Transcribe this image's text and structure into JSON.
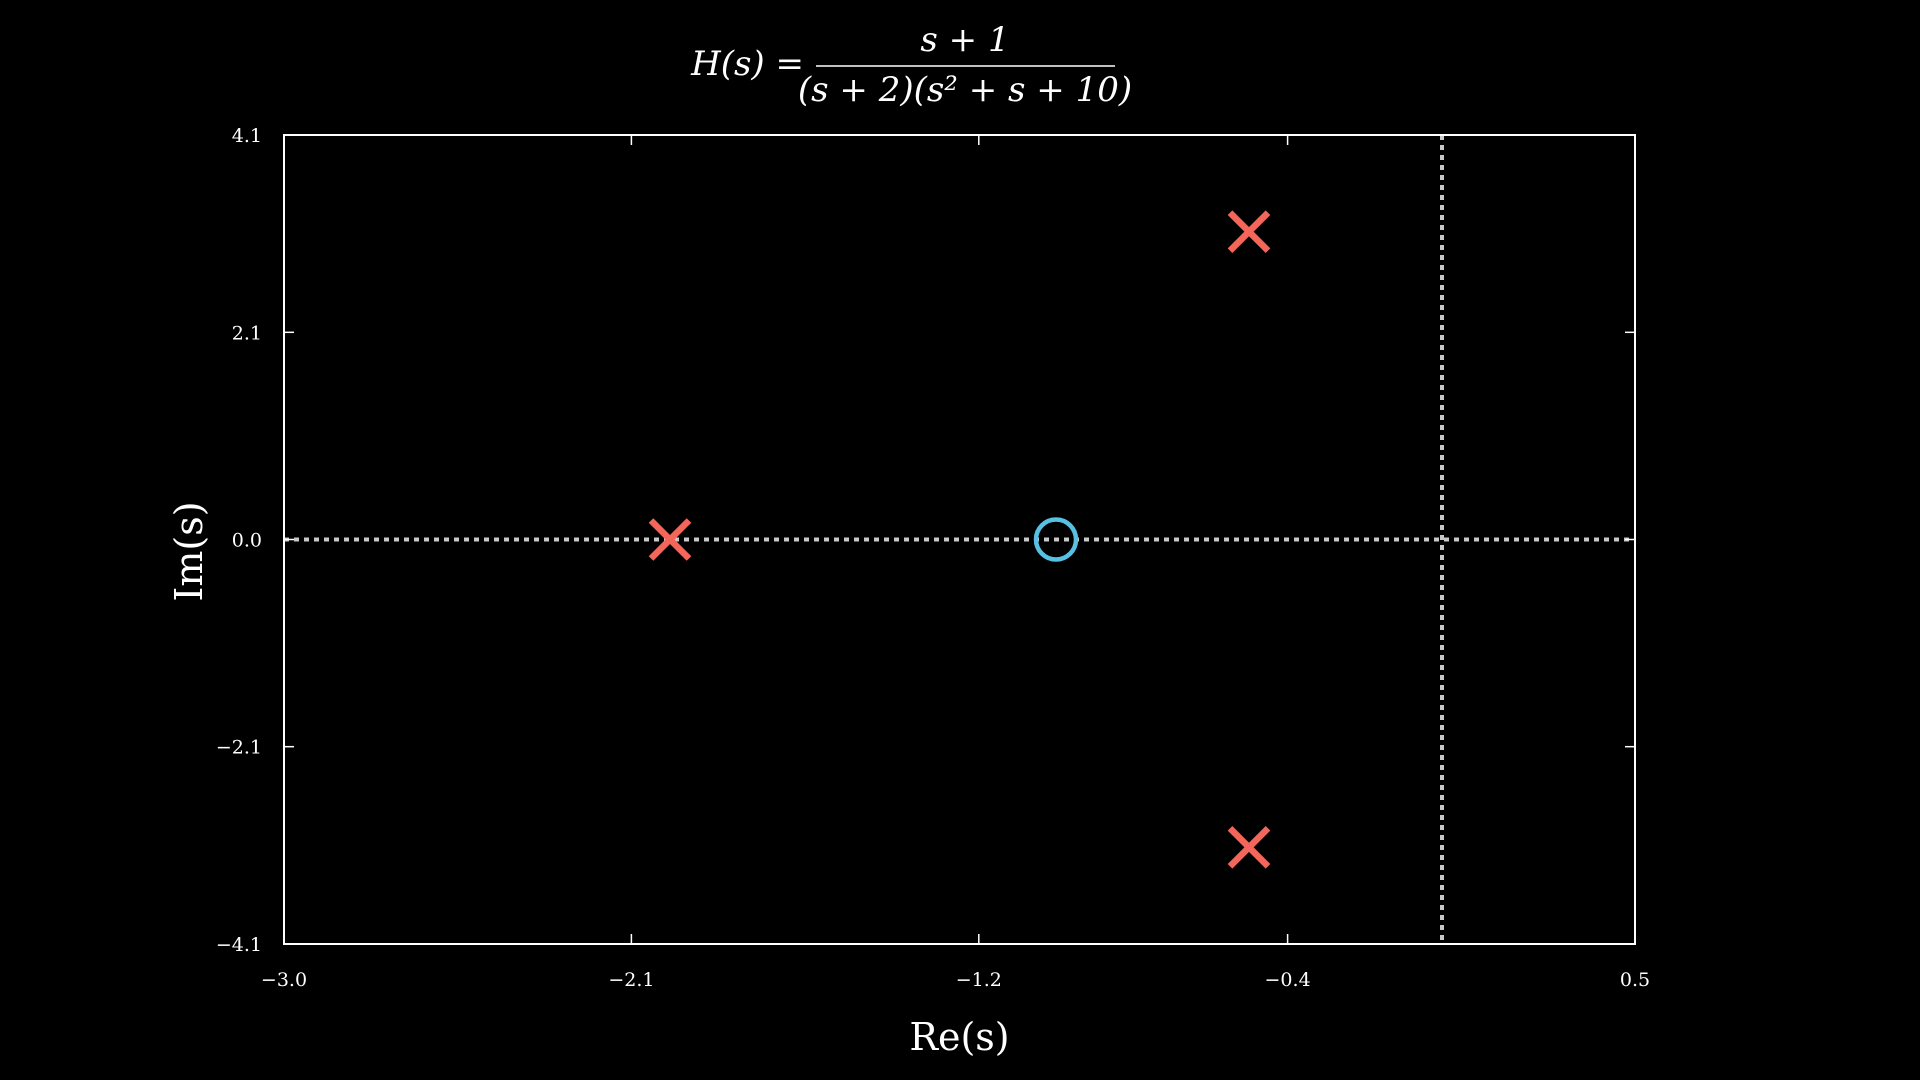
{
  "chart_data": {
    "type": "scatter",
    "title": {
      "lhs": "H(s) =",
      "numerator": "s + 1",
      "denominator": "(s + 2)(s² + s + 10)"
    },
    "xlabel": "Re(s)",
    "ylabel": "Im(s)",
    "xlim": [
      -3.0,
      0.5
    ],
    "ylim": [
      -4.1,
      4.1
    ],
    "x_ticks": [
      -3.0,
      -2.1,
      -1.2,
      -0.4,
      0.5
    ],
    "x_tick_labels": [
      "−3.0",
      "−2.1",
      "−1.2",
      "−0.4",
      "0.5"
    ],
    "y_ticks": [
      -4.1,
      -2.1,
      0.0,
      2.1,
      4.1
    ],
    "y_tick_labels": [
      "−4.1",
      "−2.1",
      "0.0",
      "2.1",
      "4.1"
    ],
    "poles": [
      {
        "re": -2.0,
        "im": 0.0
      },
      {
        "re": -0.5,
        "im": 3.12
      },
      {
        "re": -0.5,
        "im": -3.12
      }
    ],
    "zeros": [
      {
        "re": -1.0,
        "im": 0.0
      }
    ],
    "reference_lines": {
      "horizontal_y": 0.0,
      "vertical_x": 0.0
    },
    "grid": false,
    "legend": "none"
  },
  "colors": {
    "background": "#000000",
    "axes": "#ffffff",
    "pole": "#f4665a",
    "zero": "#57c1e4",
    "reference_line": "#c8c8c8"
  }
}
